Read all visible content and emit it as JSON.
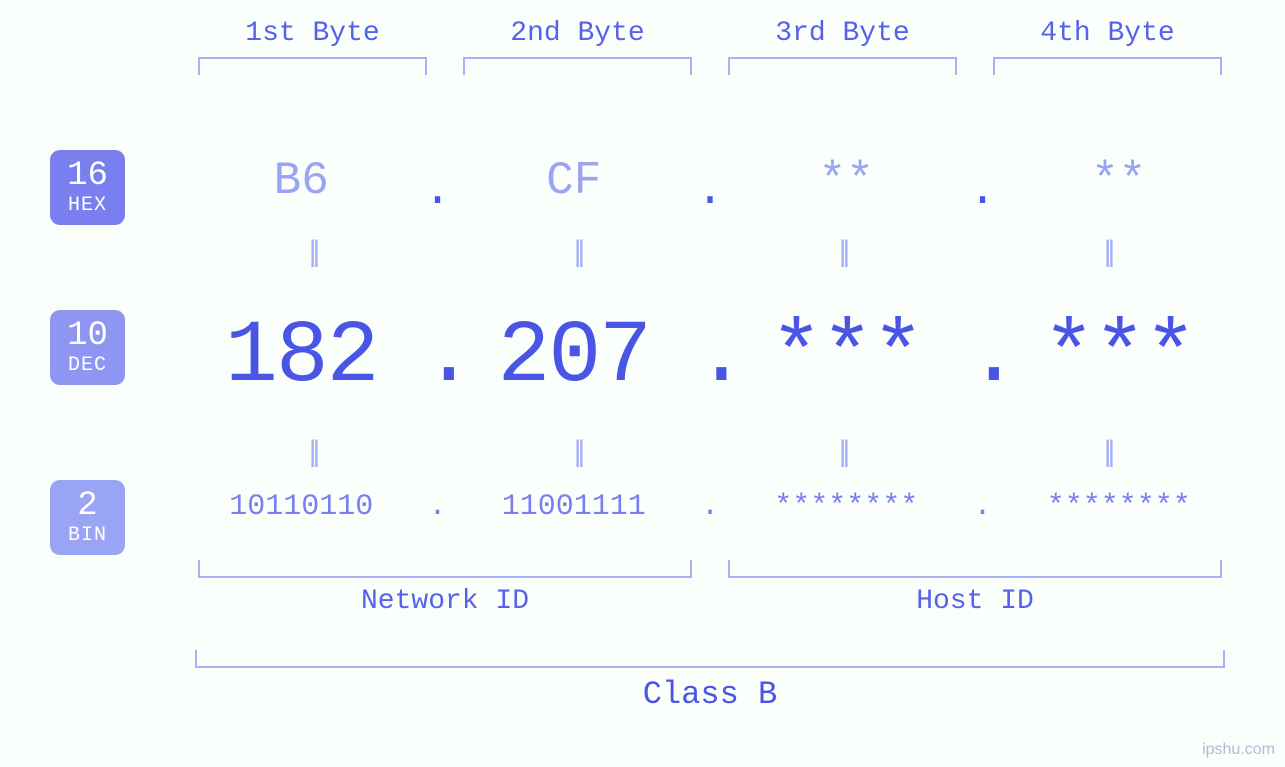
{
  "type": "infographic",
  "background_color": "#fafffc",
  "colors": {
    "badge_hex": "#7a7ff0",
    "badge_dec": "#8f96f2",
    "badge_bin": "#9aa4f4",
    "badge_text": "#ffffff",
    "bracket": "#a8b0f6",
    "label": "#5762ea",
    "dec_text": "#4a55e6",
    "hex_text": "#9aa4f4",
    "bin_text": "#7a7ff0",
    "eq_text": "#a8b0f6",
    "watermark": "#b5b9d8"
  },
  "font_family": "monospace",
  "font_sizes": {
    "byte_label": 28,
    "hex": 46,
    "dec": 88,
    "bin": 30,
    "eq": 30,
    "id_label": 28,
    "class_label": 32,
    "badge_num": 34,
    "badge_name": 20
  },
  "badges": {
    "hex": {
      "num": "16",
      "name": "HEX"
    },
    "dec": {
      "num": "10",
      "name": "DEC"
    },
    "bin": {
      "num": "2",
      "name": "BIN"
    }
  },
  "byte_headers": [
    "1st Byte",
    "2nd Byte",
    "3rd Byte",
    "4th Byte"
  ],
  "hex": [
    "B6",
    "CF",
    "**",
    "**"
  ],
  "dec": [
    "182",
    "207",
    "***",
    "***"
  ],
  "bin": [
    "10110110",
    "11001111",
    "********",
    "********"
  ],
  "dot": ".",
  "eq": "||",
  "ids": {
    "network": "Network ID",
    "host": "Host ID"
  },
  "class_label": "Class B",
  "watermark": "ipshu.com"
}
